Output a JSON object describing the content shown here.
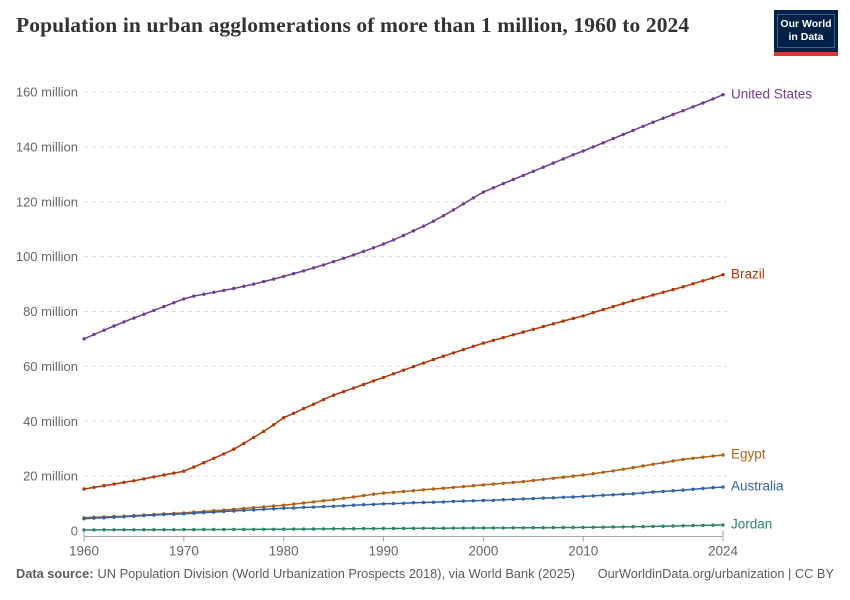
{
  "title": "Population in urban agglomerations of more than 1 million, 1960 to 2024",
  "logo": {
    "line1": "Our World",
    "line2": "in Data",
    "bg_color": "#002147",
    "accent_color": "#dc3a2f"
  },
  "footer": {
    "source_label": "Data source:",
    "source_text": "UN Population Division (World Urbanization Prospects 2018), via World Bank (2025)",
    "right_text": "OurWorldinData.org/urbanization | CC BY"
  },
  "chart_data": {
    "type": "line",
    "title": "Population in urban agglomerations of more than 1 million, 1960 to 2024",
    "xlabel": "",
    "ylabel": "",
    "x_start": 1960,
    "x_end": 2024,
    "x_ticks": [
      1960,
      1970,
      1980,
      1990,
      2000,
      2010,
      2024
    ],
    "y_ticks": [
      0,
      20,
      40,
      60,
      80,
      100,
      120,
      140,
      160
    ],
    "y_tick_suffix": " million",
    "ylim": [
      0,
      160
    ],
    "grid": true,
    "legend_position": "right-end-labels",
    "marker": "dot-per-year",
    "colors": {
      "grid": "#dcdcdc",
      "axis": "#a5a5a5",
      "tick_text": "#666666"
    },
    "series": [
      {
        "name": "United States",
        "color": "#6d3e91",
        "values": [
          70.0,
          71.6,
          73.2,
          74.7,
          76.2,
          77.6,
          79.0,
          80.4,
          81.8,
          83.2,
          84.6,
          85.6,
          86.3,
          87.0,
          87.7,
          88.4,
          89.2,
          90.0,
          90.9,
          91.8,
          92.8,
          93.8,
          94.8,
          95.9,
          97.0,
          98.2,
          99.4,
          100.6,
          101.9,
          103.2,
          104.6,
          106.1,
          107.7,
          109.4,
          111.1,
          112.9,
          114.9,
          117.0,
          119.2,
          121.4,
          123.5,
          125.1,
          126.6,
          128.1,
          129.6,
          131.1,
          132.6,
          134.1,
          135.6,
          137.1,
          138.5,
          140.0,
          141.5,
          143.0,
          144.5,
          146.0,
          147.5,
          149.0,
          150.4,
          151.8,
          153.2,
          154.6,
          156.0,
          157.5,
          159.0
        ]
      },
      {
        "name": "Brazil",
        "color": "#b13507",
        "values": [
          15.3,
          15.9,
          16.5,
          17.1,
          17.7,
          18.3,
          19.0,
          19.7,
          20.4,
          21.1,
          21.8,
          23.3,
          24.9,
          26.5,
          28.1,
          29.8,
          31.9,
          34.1,
          36.3,
          38.7,
          41.3,
          42.9,
          44.6,
          46.2,
          47.9,
          49.5,
          50.8,
          52.1,
          53.4,
          54.7,
          56.0,
          57.3,
          58.6,
          59.9,
          61.2,
          62.5,
          63.7,
          64.9,
          66.1,
          67.3,
          68.5,
          69.5,
          70.5,
          71.5,
          72.5,
          73.5,
          74.5,
          75.5,
          76.5,
          77.5,
          78.4,
          79.6,
          80.7,
          81.8,
          82.9,
          84.0,
          85.0,
          86.0,
          87.0,
          88.0,
          89.0,
          90.1,
          91.2,
          92.3,
          93.4
        ]
      },
      {
        "name": "Egypt",
        "color": "#b16214",
        "values": [
          4.8,
          5.0,
          5.1,
          5.3,
          5.4,
          5.6,
          5.8,
          6.0,
          6.2,
          6.4,
          6.6,
          6.9,
          7.1,
          7.4,
          7.6,
          7.9,
          8.2,
          8.5,
          8.8,
          9.1,
          9.4,
          9.8,
          10.2,
          10.6,
          11.0,
          11.4,
          11.9,
          12.4,
          12.9,
          13.4,
          13.8,
          14.1,
          14.4,
          14.7,
          15.0,
          15.3,
          15.6,
          15.9,
          16.2,
          16.5,
          16.8,
          17.1,
          17.4,
          17.7,
          18.0,
          18.4,
          18.8,
          19.2,
          19.6,
          20.0,
          20.4,
          20.9,
          21.4,
          21.9,
          22.5,
          23.1,
          23.7,
          24.3,
          24.9,
          25.5,
          26.1,
          26.5,
          26.9,
          27.3,
          27.7
        ]
      },
      {
        "name": "Australia",
        "color": "#3360a9",
        "values": [
          4.5,
          4.7,
          4.8,
          5.0,
          5.2,
          5.4,
          5.6,
          5.8,
          6.0,
          6.1,
          6.3,
          6.5,
          6.7,
          6.9,
          7.1,
          7.3,
          7.5,
          7.7,
          7.9,
          8.1,
          8.3,
          8.4,
          8.6,
          8.7,
          8.9,
          9.0,
          9.2,
          9.4,
          9.6,
          9.7,
          9.9,
          10.0,
          10.1,
          10.3,
          10.4,
          10.5,
          10.6,
          10.8,
          10.9,
          11.0,
          11.1,
          11.2,
          11.4,
          11.5,
          11.7,
          11.8,
          12.0,
          12.1,
          12.3,
          12.4,
          12.6,
          12.8,
          13.0,
          13.2,
          13.4,
          13.6,
          13.9,
          14.2,
          14.4,
          14.7,
          14.9,
          15.2,
          15.5,
          15.8,
          16.0
        ]
      },
      {
        "name": "Jordan",
        "color": "#2c8465",
        "values": [
          0.4,
          0.41,
          0.42,
          0.43,
          0.44,
          0.45,
          0.46,
          0.47,
          0.48,
          0.49,
          0.5,
          0.51,
          0.53,
          0.54,
          0.56,
          0.57,
          0.59,
          0.6,
          0.62,
          0.63,
          0.65,
          0.68,
          0.71,
          0.74,
          0.77,
          0.8,
          0.82,
          0.84,
          0.86,
          0.88,
          0.9,
          0.92,
          0.94,
          0.96,
          0.98,
          1.0,
          1.02,
          1.04,
          1.06,
          1.08,
          1.1,
          1.12,
          1.14,
          1.16,
          1.18,
          1.2,
          1.22,
          1.24,
          1.26,
          1.28,
          1.3,
          1.35,
          1.4,
          1.45,
          1.5,
          1.55,
          1.6,
          1.68,
          1.75,
          1.82,
          1.9,
          1.97,
          2.05,
          2.12,
          2.2
        ]
      }
    ]
  }
}
